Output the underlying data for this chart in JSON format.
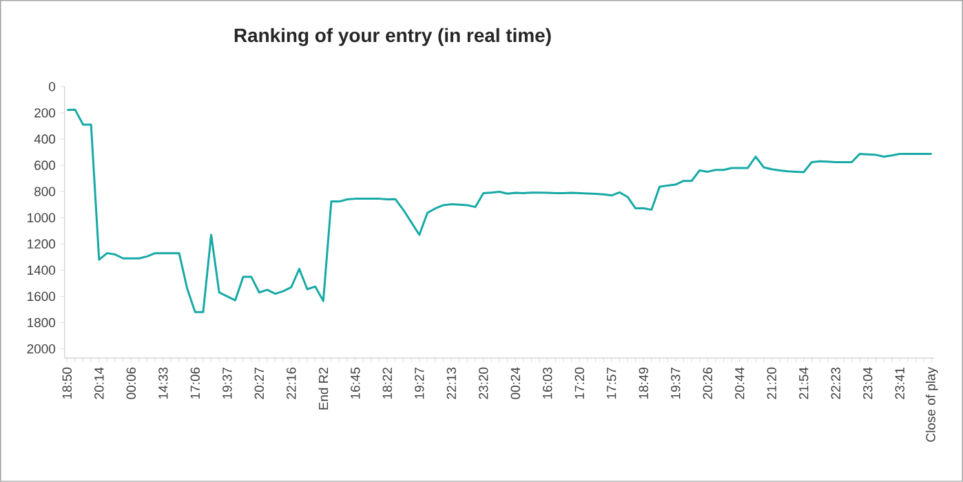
{
  "chart_data": {
    "type": "line",
    "title": "Ranking of your entry (in real time)",
    "categories": [
      "18:50",
      null,
      null,
      null,
      "20:14",
      null,
      null,
      null,
      "00:06",
      null,
      null,
      null,
      "14:33",
      null,
      null,
      null,
      "17:06",
      null,
      null,
      null,
      "19:37",
      null,
      null,
      null,
      "20:27",
      null,
      null,
      null,
      "22:16",
      null,
      null,
      null,
      "End R2",
      null,
      null,
      null,
      "16:45",
      null,
      null,
      null,
      "18:22",
      null,
      null,
      null,
      "19:27",
      null,
      null,
      null,
      "22:13",
      null,
      null,
      null,
      "23:20",
      null,
      null,
      null,
      "00:24",
      null,
      null,
      null,
      "16:03",
      null,
      null,
      null,
      "17:20",
      null,
      null,
      null,
      "17:57",
      null,
      null,
      null,
      "18:49",
      null,
      null,
      null,
      "19:37",
      null,
      null,
      null,
      "20:26",
      null,
      null,
      null,
      "20:44",
      null,
      null,
      null,
      "21:20",
      null,
      null,
      null,
      "21:54",
      null,
      null,
      null,
      "22:23",
      null,
      null,
      null,
      "23:04",
      null,
      null,
      null,
      "23:41",
      null,
      null,
      null,
      "Close of play"
    ],
    "values": [
      178,
      175,
      290,
      290,
      1320,
      1270,
      1280,
      1310,
      1310,
      1310,
      1295,
      1270,
      1270,
      1270,
      1270,
      1540,
      1720,
      1720,
      1130,
      1570,
      1600,
      1630,
      1450,
      1450,
      1570,
      1550,
      1580,
      1560,
      1530,
      1390,
      1545,
      1525,
      1635,
      876,
      876,
      860,
      855,
      855,
      855,
      855,
      860,
      858,
      940,
      1035,
      1130,
      963,
      929,
      904,
      897,
      900,
      904,
      918,
      813,
      808,
      802,
      816,
      810,
      812,
      808,
      808,
      810,
      812,
      812,
      810,
      812,
      815,
      818,
      822,
      830,
      806,
      841,
      928,
      928,
      939,
      764,
      754,
      747,
      719,
      719,
      639,
      649,
      635,
      635,
      621,
      621,
      621,
      534,
      615,
      630,
      639,
      646,
      649,
      652,
      576,
      569,
      572,
      576,
      576,
      576,
      513,
      517,
      520,
      534,
      525,
      513,
      513,
      513,
      513,
      513
    ],
    "color": "#17a9a6",
    "ylim": [
      2070,
      0
    ],
    "yticks": [
      0,
      200,
      400,
      600,
      800,
      1000,
      1200,
      1400,
      1600,
      1800,
      2000
    ]
  }
}
